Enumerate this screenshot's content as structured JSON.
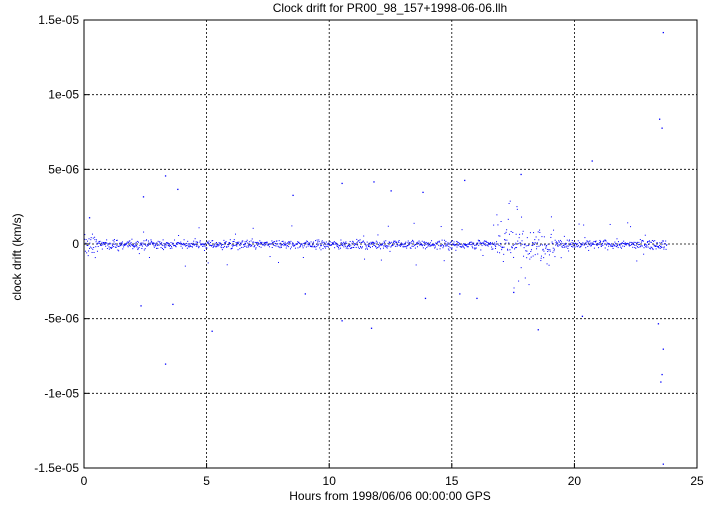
{
  "chart_data": {
    "type": "scatter",
    "title": "Clock drift for PR00_98_157+1998-06-06.llh",
    "xlabel": "Hours from 1998/06/06 00:00:00 GPS",
    "ylabel": "clock drift (km/s)",
    "xlim": [
      0,
      25
    ],
    "ylim": [
      -1.5e-05,
      1.5e-05
    ],
    "x_ticks": [
      0,
      5,
      10,
      15,
      20,
      25
    ],
    "x_tick_labels": [
      "0",
      "5",
      "10",
      "15",
      "20",
      "25"
    ],
    "y_ticks": [
      -1.5e-05,
      -1e-05,
      -5e-06,
      0,
      5e-06,
      1e-05,
      1.5e-05
    ],
    "y_tick_labels": [
      "-1.5e-05",
      "-1e-05",
      "-5e-06",
      "0",
      "5e-06",
      "1e-05",
      "1.5e-05"
    ],
    "grid": true,
    "point_color": "#0000ff",
    "series": [
      {
        "x_start": 0,
        "x_end": 23.75,
        "typical_spread": 3e-07,
        "outliers": [
          {
            "x": 23.6,
            "y": 1.42e-05
          },
          {
            "x": 23.45,
            "y": 8.4e-06
          },
          {
            "x": 23.55,
            "y": 7.8e-06
          },
          {
            "x": 20.7,
            "y": 5.6e-06
          },
          {
            "x": 17.8,
            "y": 4.7e-06
          },
          {
            "x": 3.3,
            "y": 4.6e-06
          },
          {
            "x": 15.5,
            "y": 4.3e-06
          },
          {
            "x": 11.8,
            "y": 4.2e-06
          },
          {
            "x": 10.5,
            "y": 4.1e-06
          },
          {
            "x": 3.8,
            "y": 3.7e-06
          },
          {
            "x": 12.5,
            "y": 3.6e-06
          },
          {
            "x": 13.8,
            "y": 3.5e-06
          },
          {
            "x": 2.4,
            "y": 3.2e-06
          },
          {
            "x": 8.5,
            "y": 3.3e-06
          },
          {
            "x": 0.2,
            "y": 1.8e-06
          },
          {
            "x": 20.3,
            "y": -4.8e-06
          },
          {
            "x": 5.2,
            "y": -5.8e-06
          },
          {
            "x": 10.5,
            "y": -5.1e-06
          },
          {
            "x": 11.7,
            "y": -5.6e-06
          },
          {
            "x": 18.5,
            "y": -5.7e-06
          },
          {
            "x": 2.3,
            "y": -4.1e-06
          },
          {
            "x": 3.6,
            "y": -4e-06
          },
          {
            "x": 3.3,
            "y": -8e-06
          },
          {
            "x": 23.4,
            "y": -5.3e-06
          },
          {
            "x": 23.5,
            "y": -9.2e-06
          },
          {
            "x": 23.55,
            "y": -8.7e-06
          },
          {
            "x": 23.6,
            "y": -7e-06
          },
          {
            "x": 23.6,
            "y": -1.47e-05
          },
          {
            "x": 16.0,
            "y": -3.6e-06
          },
          {
            "x": 13.9,
            "y": -3.6e-06
          },
          {
            "x": 15.3,
            "y": -3.3e-06
          },
          {
            "x": 17.5,
            "y": -3.2e-06
          },
          {
            "x": 9.0,
            "y": -3.3e-06
          }
        ]
      }
    ]
  }
}
